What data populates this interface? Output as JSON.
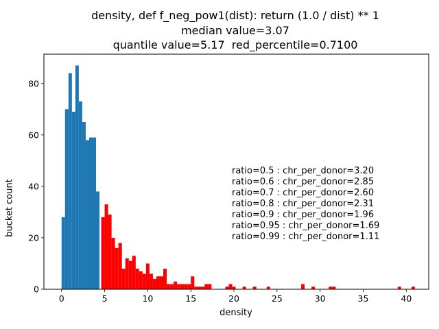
{
  "chart_data": {
    "type": "bar",
    "title_lines": [
      "density, def f_neg_pow1(dist): return (1.0 / dist) ** 1",
      "median value=3.07",
      "quantile value=5.17  red_percentile=0.7100"
    ],
    "xlabel": "density",
    "ylabel": "bucket count",
    "xlim": [
      -2.05,
      42.6
    ],
    "ylim": [
      0,
      91.4
    ],
    "xticks": [
      "0",
      "5",
      "10",
      "15",
      "20",
      "25",
      "30",
      "35",
      "40"
    ],
    "yticks": [
      "0",
      "20",
      "40",
      "60",
      "80"
    ],
    "bin_width": 0.4,
    "series": [
      {
        "color": "#1f77b4",
        "bins": [
          {
            "x": 0.0,
            "count": 28
          },
          {
            "x": 0.4,
            "count": 70
          },
          {
            "x": 0.8,
            "count": 84
          },
          {
            "x": 1.2,
            "count": 69
          },
          {
            "x": 1.6,
            "count": 87
          },
          {
            "x": 2.0,
            "count": 73
          },
          {
            "x": 2.4,
            "count": 65
          },
          {
            "x": 2.8,
            "count": 58
          },
          {
            "x": 3.2,
            "count": 59
          },
          {
            "x": 3.6,
            "count": 59
          },
          {
            "x": 4.0,
            "count": 38
          }
        ]
      },
      {
        "color": "#ff0000",
        "bins": [
          {
            "x": 4.6,
            "count": 28
          },
          {
            "x": 5.0,
            "count": 33
          },
          {
            "x": 5.4,
            "count": 29
          },
          {
            "x": 5.8,
            "count": 20
          },
          {
            "x": 6.2,
            "count": 16
          },
          {
            "x": 6.6,
            "count": 18
          },
          {
            "x": 7.0,
            "count": 8
          },
          {
            "x": 7.4,
            "count": 12
          },
          {
            "x": 7.8,
            "count": 11
          },
          {
            "x": 8.2,
            "count": 13
          },
          {
            "x": 8.6,
            "count": 8
          },
          {
            "x": 9.0,
            "count": 7
          },
          {
            "x": 9.4,
            "count": 6
          },
          {
            "x": 9.8,
            "count": 10
          },
          {
            "x": 10.2,
            "count": 6
          },
          {
            "x": 10.6,
            "count": 4
          },
          {
            "x": 11.0,
            "count": 5
          },
          {
            "x": 11.4,
            "count": 5
          },
          {
            "x": 11.8,
            "count": 8
          },
          {
            "x": 12.2,
            "count": 2
          },
          {
            "x": 12.6,
            "count": 2
          },
          {
            "x": 13.0,
            "count": 3
          },
          {
            "x": 13.4,
            "count": 2
          },
          {
            "x": 13.8,
            "count": 2
          },
          {
            "x": 14.2,
            "count": 2
          },
          {
            "x": 14.6,
            "count": 2
          },
          {
            "x": 15.0,
            "count": 5
          },
          {
            "x": 15.4,
            "count": 1
          },
          {
            "x": 15.8,
            "count": 1
          },
          {
            "x": 16.2,
            "count": 1
          },
          {
            "x": 16.6,
            "count": 2
          },
          {
            "x": 17.0,
            "count": 2
          },
          {
            "x": 19.0,
            "count": 1
          },
          {
            "x": 19.4,
            "count": 2
          },
          {
            "x": 19.8,
            "count": 1
          },
          {
            "x": 21.0,
            "count": 1
          },
          {
            "x": 22.2,
            "count": 1
          },
          {
            "x": 23.8,
            "count": 1
          },
          {
            "x": 27.8,
            "count": 2
          },
          {
            "x": 29.0,
            "count": 1
          },
          {
            "x": 31.0,
            "count": 1
          },
          {
            "x": 31.4,
            "count": 1
          },
          {
            "x": 39.0,
            "count": 1
          },
          {
            "x": 40.6,
            "count": 1
          }
        ]
      }
    ],
    "annotations": [
      "ratio=0.5 : chr_per_donor=3.20",
      "ratio=0.6 : chr_per_donor=2.85",
      "ratio=0.7 : chr_per_donor=2.60",
      "ratio=0.8 : chr_per_donor=2.31",
      "ratio=0.9 : chr_per_donor=1.96",
      "ratio=0.95 : chr_per_donor=1.69",
      "ratio=0.99 : chr_per_donor=1.11"
    ]
  }
}
